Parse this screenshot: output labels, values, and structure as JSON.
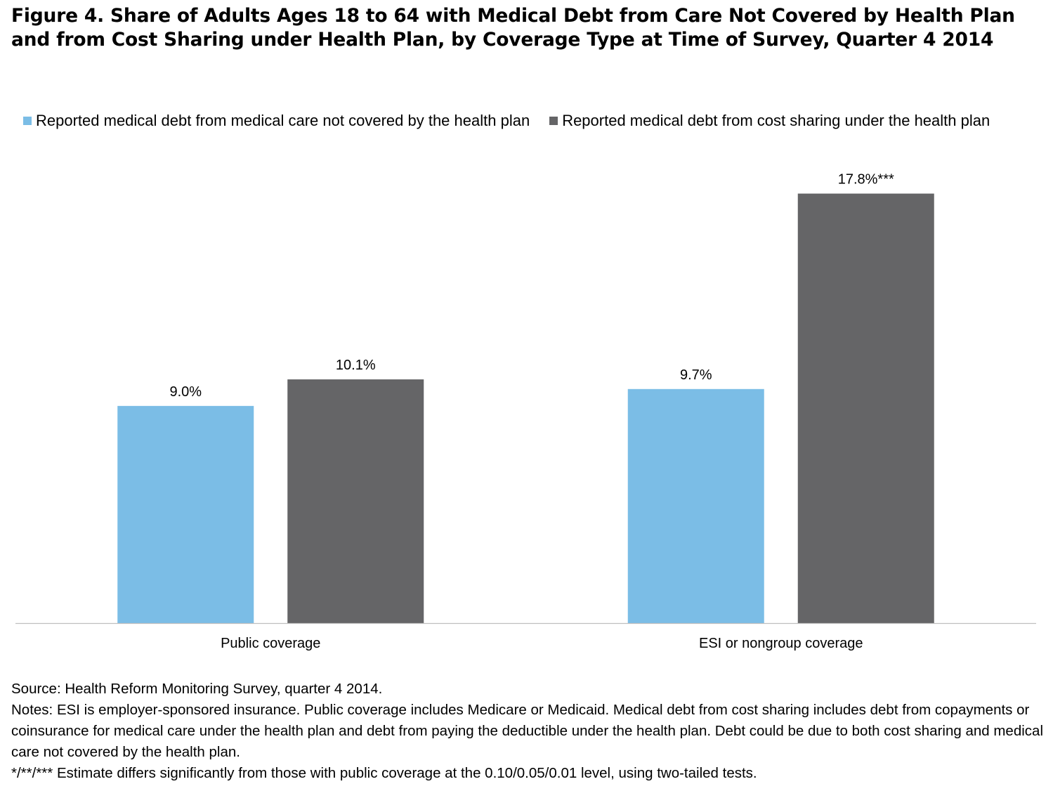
{
  "title": "Figure 4. Share of Adults Ages 18 to 64 with Medical Debt from Care Not Covered by Health Plan and from Cost Sharing under Health Plan, by Coverage Type at Time of Survey, Quarter 4 2014",
  "chart_data": {
    "type": "bar",
    "title": "Figure 4. Share of Adults Ages 18 to 64 with Medical Debt from Care Not Covered by Health Plan and from Cost Sharing under Health Plan, by Coverage Type at Time of Survey, Quarter 4 2014",
    "categories": [
      "Public coverage",
      "ESI or nongroup coverage"
    ],
    "series": [
      {
        "name": "Reported medical debt from medical care not covered by the health plan",
        "color": "#7bbde6",
        "values": [
          9.0,
          9.7
        ],
        "labels": [
          "9.0%",
          "9.7%"
        ]
      },
      {
        "name": "Reported medical debt from cost sharing under the health plan",
        "color": "#656567",
        "values": [
          10.1,
          17.8
        ],
        "labels": [
          "10.1%",
          "17.8%***"
        ]
      }
    ],
    "xlabel": "",
    "ylabel": "",
    "ylim": [
      0,
      20
    ],
    "grid": false,
    "legend_position": "top"
  },
  "notes": {
    "source": "Source: Health Reform Monitoring Survey, quarter 4 2014.",
    "notes_text": "Notes: ESI is employer-sponsored insurance.  Public coverage includes Medicare or Medicaid.  Medical debt from cost sharing includes debt from copayments or coinsurance for medical care under the health plan and debt from paying the deductible under the health plan. Debt could be due to both cost sharing and medical care not covered by the health plan.",
    "significance": "*/**/***  Estimate differs significantly from those with public coverage at the 0.10/0.05/0.01 level, using two-tailed tests."
  }
}
